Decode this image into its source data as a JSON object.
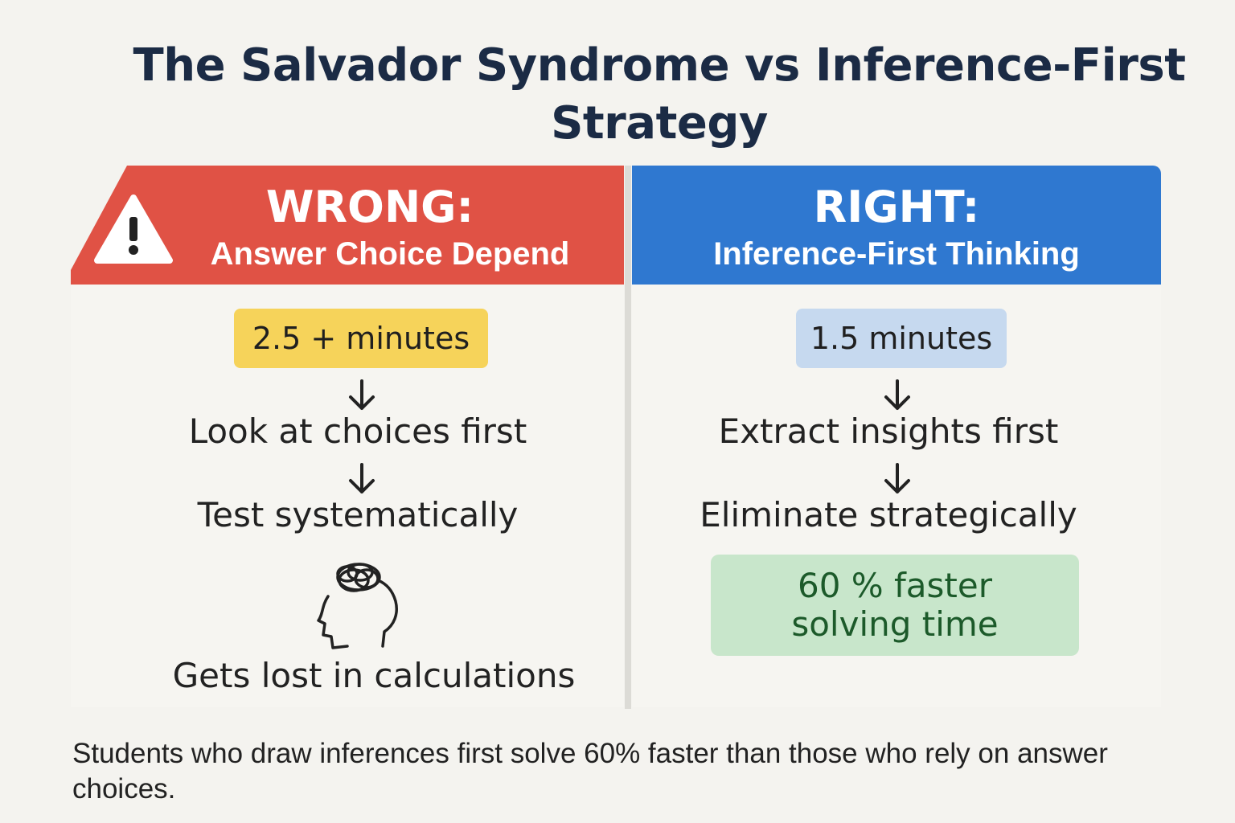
{
  "title": "The Salvador Syndrome vs Inference-First Strategy",
  "wrong": {
    "heading": "WRONG:",
    "subheading": "Answer Choice Depend",
    "time": "2.5 + minutes",
    "steps": [
      "Look at choices first",
      "Test systematically"
    ],
    "outcome": "Gets lost in calculations",
    "icons": [
      "warning-icon",
      "confused-head-icon",
      "down-arrow-icon"
    ]
  },
  "right": {
    "heading": "RIGHT:",
    "subheading": "Inference-First Thinking",
    "time": "1.5 minutes",
    "steps": [
      "Extract insights first",
      "Eliminate strategically"
    ],
    "result_line1": "60 % faster",
    "result_line2": "solving time"
  },
  "footer": "Students who draw inferences first solve 60% faster than those who rely on answer choices.",
  "colors": {
    "wrong": "#e05245",
    "right": "#2f78d0",
    "wrong_time": "#f6d35a",
    "right_time": "#c6d9ef",
    "result": "#c8e6cb",
    "title": "#1b2b45"
  }
}
